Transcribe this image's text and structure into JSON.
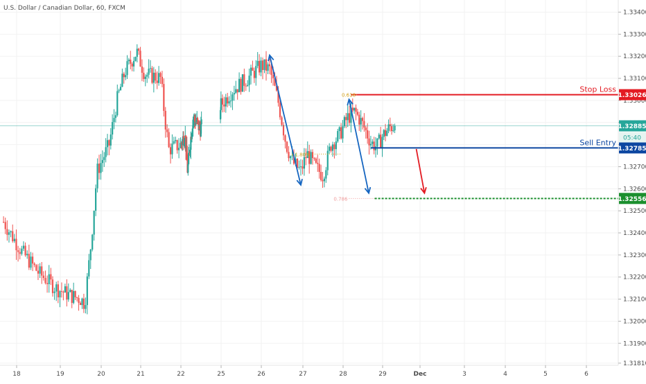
{
  "header": {
    "symbol_title": "U.S. Dollar / Canadian Dollar, 60, FXCM"
  },
  "price_axis": {
    "ticks": [
      "1.33400",
      "1.33300",
      "1.33200",
      "1.33100",
      "1.33000",
      "1.32900",
      "1.32800",
      "1.32700",
      "1.32600",
      "1.32500",
      "1.32400",
      "1.32300",
      "1.32200",
      "1.32100",
      "1.32000",
      "1.31900",
      "1.31810"
    ],
    "tick_values": [
      1.334,
      1.333,
      1.332,
      1.331,
      1.33,
      1.329,
      1.328,
      1.327,
      1.326,
      1.325,
      1.324,
      1.323,
      1.322,
      1.321,
      1.32,
      1.319,
      1.3181
    ]
  },
  "time_axis": {
    "ticks": [
      "18",
      "19",
      "20",
      "21",
      "22",
      "25",
      "26",
      "27",
      "28",
      "29",
      "Dec",
      "3",
      "4",
      "5",
      "6"
    ],
    "tick_days": [
      18,
      19,
      20,
      21,
      22,
      25,
      26,
      27,
      28,
      29,
      30,
      31,
      32,
      33,
      34
    ]
  },
  "colors": {
    "up": "#26a69a",
    "down": "#ef5350",
    "stop": "#e31b23",
    "entry": "#0d47a1",
    "target": "#1b8f2e",
    "current": "#26a69a",
    "arrow_blue": "#1565c0",
    "arrow_red": "#e31b23",
    "fib_orange": "#d4a017",
    "fib_pink": "#ef9a9a"
  },
  "levels": {
    "stop_loss": {
      "label": "Stop Loss",
      "price": 1.33026,
      "price_text": "1.33026"
    },
    "sell_entry": {
      "label": "Sell Entry",
      "price": 1.32785,
      "price_text": "1.32785"
    },
    "take_profit": {
      "price": 1.32556,
      "price_text": "1.32556"
    },
    "current": {
      "price": 1.32885,
      "price_text": "1.32885",
      "countdown": "05:40"
    }
  },
  "fib_labels": {
    "f618": {
      "text": "0.618",
      "price": 1.33026,
      "day": 28.0
    },
    "f6180": {
      "text": "61.80%",
      "price": 1.32757,
      "day": 26.8
    },
    "f786": {
      "text": "0.786",
      "price": 1.32556,
      "day": 27.8
    }
  },
  "chart_data": {
    "type": "candlestick",
    "title": "U.S. Dollar / Canadian Dollar, 60, FXCM",
    "ylim": [
      1.3176,
      1.3348
    ],
    "xlim": [
      17.7,
      35.5
    ],
    "path_points": [
      [
        17.7,
        1.3245
      ],
      [
        18.1,
        1.3232
      ],
      [
        18.5,
        1.3222
      ],
      [
        18.9,
        1.3215
      ],
      [
        19.2,
        1.3212
      ],
      [
        19.5,
        1.321
      ],
      [
        19.6,
        1.3208
      ],
      [
        19.75,
        1.3235
      ],
      [
        19.9,
        1.3268
      ],
      [
        20.2,
        1.328
      ],
      [
        20.4,
        1.33
      ],
      [
        20.6,
        1.3313
      ],
      [
        20.9,
        1.3322
      ],
      [
        21.1,
        1.3312
      ],
      [
        21.5,
        1.331
      ],
      [
        21.6,
        1.3292
      ],
      [
        21.7,
        1.3278
      ],
      [
        22.0,
        1.328
      ],
      [
        22.3,
        1.3285
      ],
      [
        22.5,
        1.3268
      ],
      [
        22.7,
        1.3281
      ],
      [
        22.9,
        1.3292
      ],
      [
        23.2,
        1.329
      ],
      [
        23.4,
        1.3287
      ],
      [
        25.0,
        1.3298
      ],
      [
        25.3,
        1.3305
      ],
      [
        25.6,
        1.3309
      ],
      [
        26.0,
        1.3316
      ],
      [
        26.2,
        1.3314
      ],
      [
        26.4,
        1.33
      ],
      [
        26.6,
        1.328
      ],
      [
        26.75,
        1.3272
      ],
      [
        26.95,
        1.3268
      ],
      [
        27.1,
        1.3276
      ],
      [
        27.3,
        1.327
      ],
      [
        27.5,
        1.3266
      ],
      [
        27.7,
        1.328
      ],
      [
        27.9,
        1.3284
      ],
      [
        28.1,
        1.3292
      ],
      [
        28.3,
        1.3295
      ],
      [
        28.5,
        1.3289
      ],
      [
        28.7,
        1.3281
      ],
      [
        28.85,
        1.3279
      ],
      [
        29.0,
        1.3284
      ],
      [
        29.2,
        1.3288
      ],
      [
        29.35,
        1.32885
      ]
    ],
    "last_day": 29.35,
    "drawings": [
      {
        "type": "double-arrow",
        "color": "blue",
        "from": [
          26.2,
          1.33205
        ],
        "to": [
          26.95,
          1.32617
        ]
      },
      {
        "type": "double-arrow",
        "color": "blue",
        "from": [
          28.15,
          1.33005
        ],
        "to": [
          28.65,
          1.3258
        ]
      },
      {
        "type": "arrow",
        "color": "red",
        "from": [
          29.9,
          1.3278
        ],
        "to": [
          30.1,
          1.3258
        ]
      }
    ]
  }
}
